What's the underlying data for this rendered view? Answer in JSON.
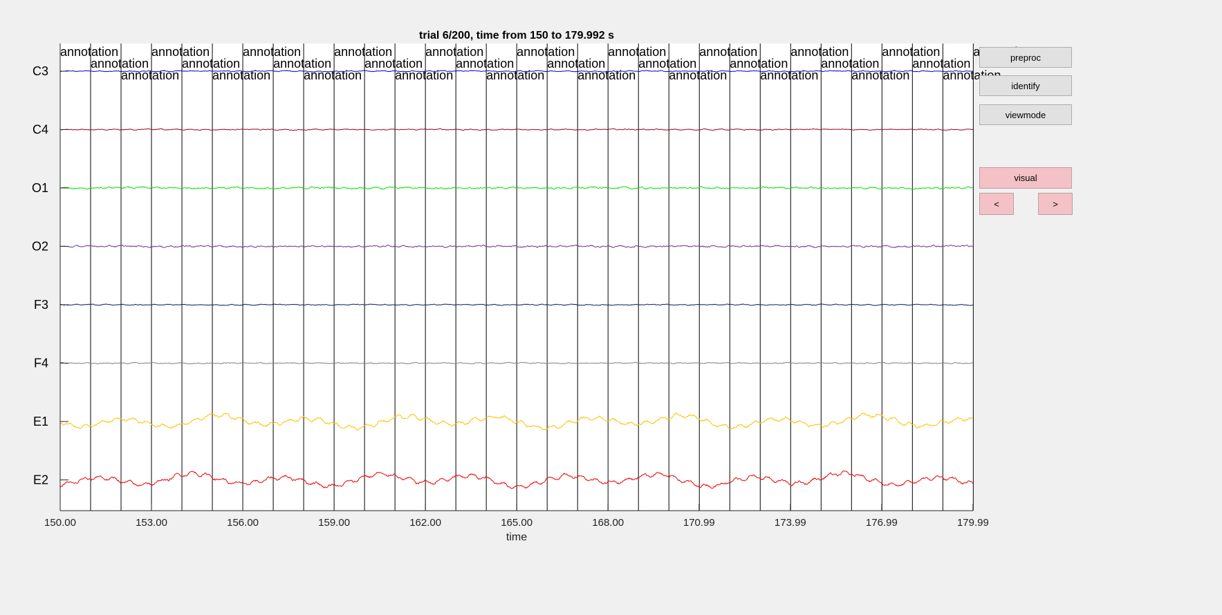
{
  "window": {
    "title": "trial 6/200, time from 150 to 179.992 s"
  },
  "buttons": {
    "preproc": "preproc",
    "identify": "identify",
    "viewmode": "viewmode",
    "visual": "visual",
    "prev": "<",
    "next": ">"
  },
  "colors": {
    "background": "#f0f0f0",
    "axes_background": "#ffffff",
    "pink_button": "#f4c2c6",
    "gray_button": "#e1e1e1"
  },
  "chart_data": {
    "type": "line",
    "title": "trial 6/200, time from 150 to 179.992 s",
    "xlabel": "time",
    "ylabel": "",
    "xlim": [
      150,
      179.992
    ],
    "x_ticks": [
      150,
      153,
      156,
      159,
      162,
      165,
      168,
      170.99,
      173.99,
      176.99,
      179.99
    ],
    "x_tick_labels": [
      "150.00",
      "153.00",
      "156.00",
      "159.00",
      "162.00",
      "165.00",
      "168.00",
      "170.99",
      "173.99",
      "176.99",
      "179.99"
    ],
    "channels": [
      "C3",
      "C4",
      "O1",
      "O2",
      "F3",
      "F4",
      "E1",
      "E2"
    ],
    "series": [
      {
        "name": "C3",
        "color": "#0000cc",
        "amplitude": 1.2,
        "noise": 0.5,
        "slow": 0.2
      },
      {
        "name": "C4",
        "color": "#a5001e",
        "amplitude": 1.2,
        "noise": 0.6,
        "slow": 0.2
      },
      {
        "name": "O1",
        "color": "#00e000",
        "amplitude": 1.8,
        "noise": 1.0,
        "slow": 0.2
      },
      {
        "name": "O2",
        "color": "#7030a0",
        "amplitude": 1.8,
        "noise": 1.0,
        "slow": 0.2
      },
      {
        "name": "F3",
        "color": "#002060",
        "amplitude": 1.2,
        "noise": 0.5,
        "slow": 0.2
      },
      {
        "name": "F4",
        "color": "#808080",
        "amplitude": 1.2,
        "noise": 0.6,
        "slow": 0.2
      },
      {
        "name": "E1",
        "color": "#ffc000",
        "amplitude": 8,
        "noise": 1.5,
        "slow": 1.0
      },
      {
        "name": "E2",
        "color": "#ee0000",
        "amplitude": 8,
        "noise": 1.5,
        "slow": 1.0
      }
    ],
    "annotations": {
      "label": "annotation",
      "times": [
        150,
        151,
        152,
        153,
        154,
        155,
        156,
        157,
        158,
        159,
        160,
        161,
        162,
        163,
        164,
        165,
        166,
        167,
        168,
        169,
        170,
        171,
        172,
        173,
        174,
        175,
        176,
        177,
        178,
        179,
        180
      ]
    },
    "grid": false,
    "legend": "none"
  }
}
